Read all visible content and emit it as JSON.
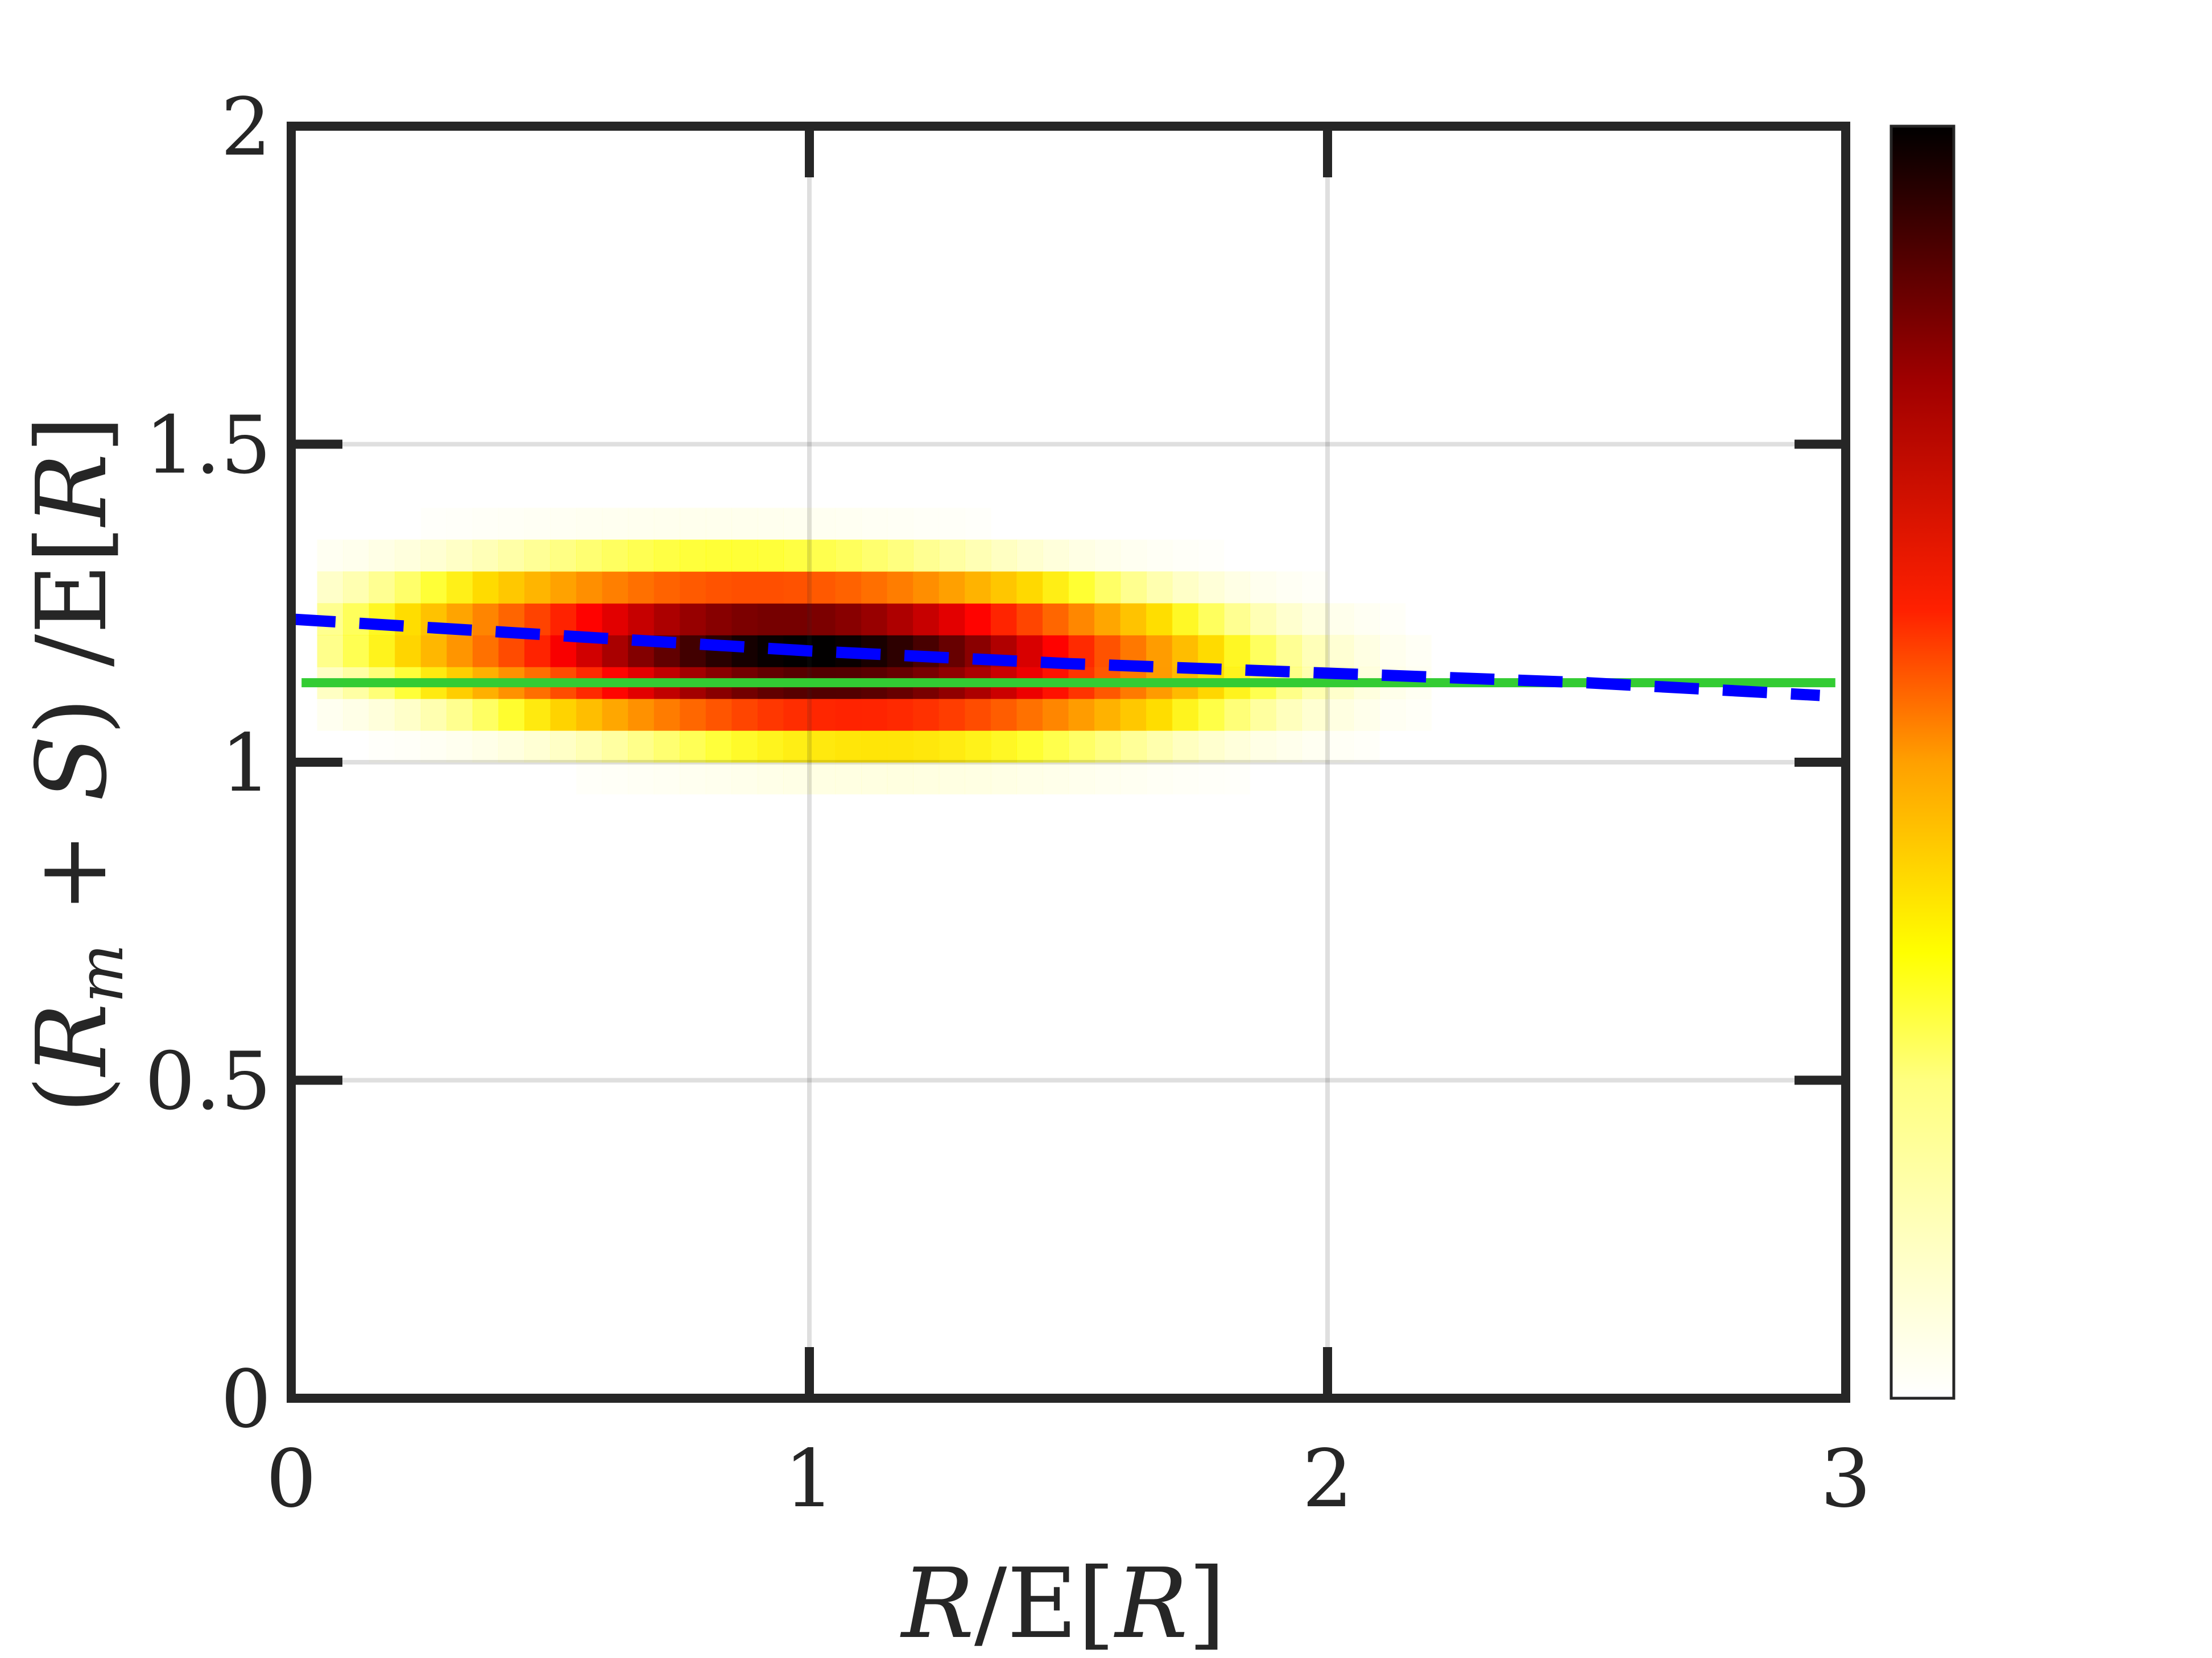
{
  "chart_data": {
    "type": "heatmap",
    "xlabel_parts": {
      "a": "R",
      "b": "/E[",
      "c": "R",
      "d": "]"
    },
    "ylabel_parts": {
      "a": "(",
      "b": "R",
      "c": "m",
      "d": " + ",
      "e": "S",
      "f": ") /E[",
      "g": "R",
      "h": "]"
    },
    "xlim": [
      0,
      3
    ],
    "ylim": [
      0,
      2
    ],
    "xticks": [
      "0",
      "1",
      "2",
      "3"
    ],
    "yticks": [
      "0",
      "0.5",
      "1",
      "1.5",
      "2"
    ],
    "grid": true,
    "colormap": "hot (reversed): white → yellow → orange → red → black",
    "colorbar": true,
    "colorbar_ticks": [],
    "density": {
      "center_x": 1.0,
      "center_y": 1.17,
      "spread_x": 0.48,
      "spread_y": 0.085,
      "support_x": [
        0.03,
        2.2
      ],
      "support_y": [
        0.88,
        1.45
      ]
    },
    "series": [
      {
        "style": "solid",
        "color": "#33cc33",
        "x": [
          0.02,
          2.98
        ],
        "y": [
          1.125,
          1.125
        ]
      },
      {
        "style": "dashed",
        "color": "#0000ff",
        "x": [
          0.0,
          0.5,
          1.0,
          1.5,
          2.0,
          2.5,
          2.95
        ],
        "y": [
          1.225,
          1.2,
          1.175,
          1.155,
          1.14,
          1.125,
          1.105
        ]
      }
    ]
  }
}
